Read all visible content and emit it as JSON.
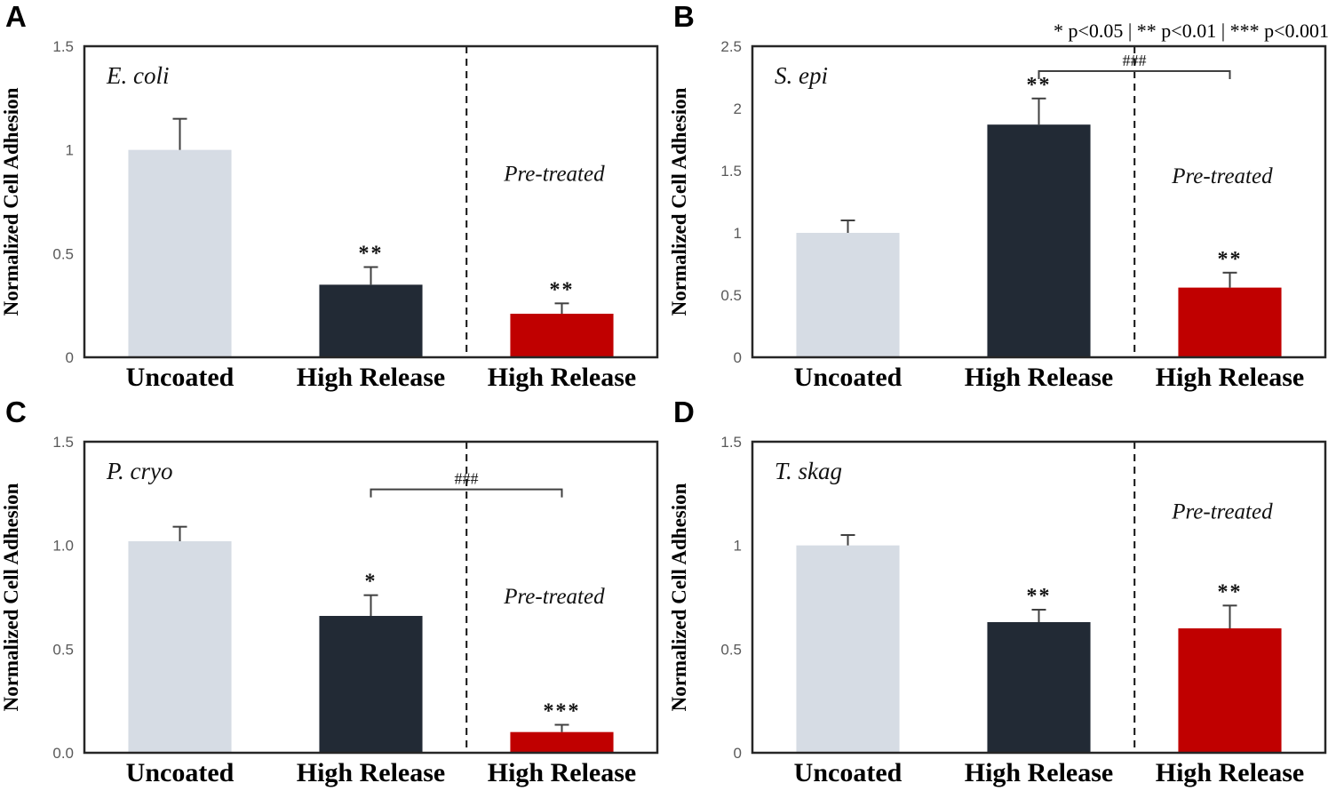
{
  "figure": {
    "sig_legend": "* p<0.05 | ** p<0.01 | *** p<0.001",
    "colors": {
      "uncoated": "#d6dce4",
      "high_release": "#222a35",
      "pretreated_red": "#c00000",
      "frame": "#262626",
      "tick_label": "#595959",
      "error_bar": "#404040",
      "dashed_line": "#111111",
      "bracket": "#404040"
    }
  },
  "chart_data": [
    {
      "panel": "A",
      "type": "bar",
      "title": "E. coli",
      "ylabel": "Normalized Cell Adhesion",
      "ylim": [
        0,
        1.5
      ],
      "yticks": [
        0,
        0.5,
        1,
        1.5
      ],
      "ytick_labels": [
        "0",
        "0.5",
        "1",
        "1.5"
      ],
      "categories": [
        "Uncoated",
        "High Release",
        "High Release"
      ],
      "values": [
        1.0,
        0.35,
        0.21
      ],
      "errors": [
        0.15,
        0.085,
        0.05
      ],
      "sig": [
        "",
        "**",
        "**"
      ],
      "bar_colors": [
        "uncoated",
        "high_release",
        "pretreated_red"
      ],
      "pretreated_label": "Pre-treated",
      "pretreated_y": 0.85,
      "separator_frac": 0.667,
      "bracket": null,
      "grid": false,
      "legend": false
    },
    {
      "panel": "B",
      "type": "bar",
      "title": "S. epi",
      "ylabel": "Normalized Cell Adhesion",
      "ylim": [
        0,
        2.5
      ],
      "yticks": [
        0,
        0.5,
        1,
        1.5,
        2,
        2.5
      ],
      "ytick_labels": [
        "0",
        "0.5",
        "1",
        "1.5",
        "2",
        "2.5"
      ],
      "categories": [
        "Uncoated",
        "High Release",
        "High Release"
      ],
      "values": [
        1.0,
        1.87,
        0.56
      ],
      "errors": [
        0.1,
        0.21,
        0.12
      ],
      "sig": [
        "",
        "**",
        "**"
      ],
      "bar_colors": [
        "uncoated",
        "high_release",
        "pretreated_red"
      ],
      "pretreated_label": "Pre-treated",
      "pretreated_y": 1.4,
      "separator_frac": 0.667,
      "bracket": {
        "from": 1,
        "to": 2,
        "y": 2.3,
        "label": "###"
      },
      "grid": false,
      "legend": false
    },
    {
      "panel": "C",
      "type": "bar",
      "title": "P. cryo",
      "ylabel": "Normalized Cell Adhesion",
      "ylim": [
        0,
        1.5
      ],
      "yticks": [
        0,
        0.5,
        1,
        1.5
      ],
      "ytick_labels": [
        "0.0",
        "0.5",
        "1.0",
        "1.5"
      ],
      "categories": [
        "Uncoated",
        "High Release",
        "High Release"
      ],
      "values": [
        1.02,
        0.66,
        0.1
      ],
      "errors": [
        0.07,
        0.1,
        0.035
      ],
      "sig": [
        "",
        "*",
        "***"
      ],
      "bar_colors": [
        "uncoated",
        "high_release",
        "pretreated_red"
      ],
      "pretreated_label": "Pre-treated",
      "pretreated_y": 0.72,
      "separator_frac": 0.667,
      "bracket": {
        "from": 1,
        "to": 2,
        "y": 1.27,
        "label": "###"
      },
      "grid": false,
      "legend": false
    },
    {
      "panel": "D",
      "type": "bar",
      "title": "T. skag",
      "ylabel": "Normalized Cell Adhesion",
      "ylim": [
        0,
        1.5
      ],
      "yticks": [
        0,
        0.5,
        1,
        1.5
      ],
      "ytick_labels": [
        "0",
        "0.5",
        "1",
        "1.5"
      ],
      "categories": [
        "Uncoated",
        "High Release",
        "High Release"
      ],
      "values": [
        1.0,
        0.63,
        0.6
      ],
      "errors": [
        0.05,
        0.06,
        0.11
      ],
      "sig": [
        "",
        "**",
        "**"
      ],
      "bar_colors": [
        "uncoated",
        "high_release",
        "pretreated_red"
      ],
      "pretreated_label": "Pre-treated",
      "pretreated_y": 1.13,
      "separator_frac": 0.667,
      "bracket": null,
      "grid": false,
      "legend": false
    }
  ]
}
